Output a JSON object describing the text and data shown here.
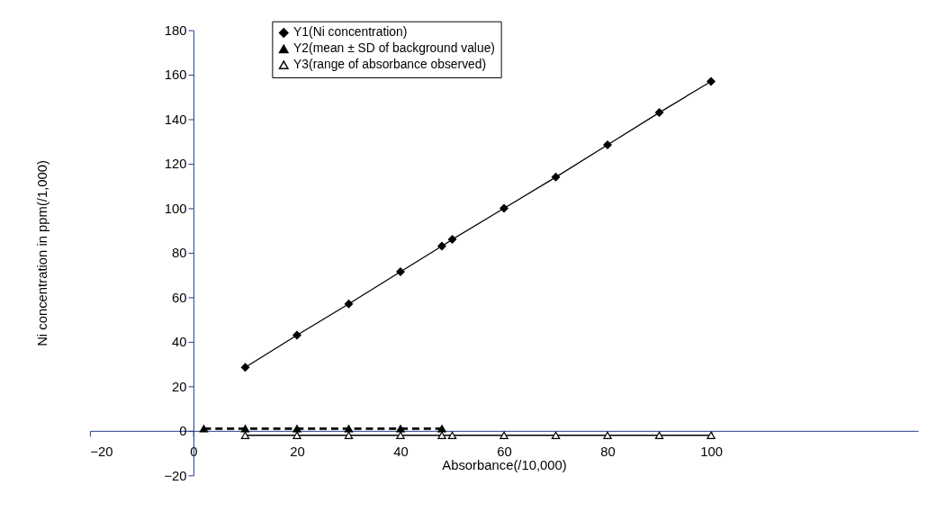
{
  "chart_data": {
    "type": "line",
    "xlabel": "Absorbance(/10,000)",
    "ylabel": "Ni concentration in ppm(/1,000)",
    "xlim": [
      -20,
      140
    ],
    "xticks": [
      -20,
      0,
      20,
      40,
      60,
      80,
      100
    ],
    "ylim": [
      -20,
      180
    ],
    "yticks": [
      -20,
      0,
      20,
      40,
      60,
      80,
      100,
      120,
      140,
      160,
      180
    ],
    "grid": false,
    "legend": "top left",
    "series": [
      {
        "name": "Y1(Ni concentration)",
        "color": "#000000",
        "marker": "diamond",
        "line_style": "solid",
        "x": [
          10,
          20,
          30,
          40,
          48,
          50,
          60,
          70,
          80,
          90,
          100
        ],
        "values": [
          28.5,
          43,
          57,
          71.5,
          83,
          86,
          100,
          114,
          128.5,
          143,
          157
        ]
      },
      {
        "name": "Y2(mean ± SD of background value)",
        "color": "#000000",
        "marker": "triangle",
        "line_style": "dashed",
        "x": [
          2,
          10,
          20,
          30,
          40,
          48
        ],
        "values": [
          1,
          1,
          1,
          1,
          1,
          1
        ]
      },
      {
        "name": "Y3(range of absorbance observed)",
        "color": "#000000",
        "marker": "triangle-open",
        "line_style": "solid",
        "x": [
          10,
          20,
          30,
          40,
          48,
          50,
          60,
          70,
          80,
          90,
          100
        ],
        "values": [
          -2,
          -2,
          -2,
          -2,
          -2,
          -2,
          -2,
          -2,
          -2,
          -2,
          -2
        ]
      }
    ]
  }
}
